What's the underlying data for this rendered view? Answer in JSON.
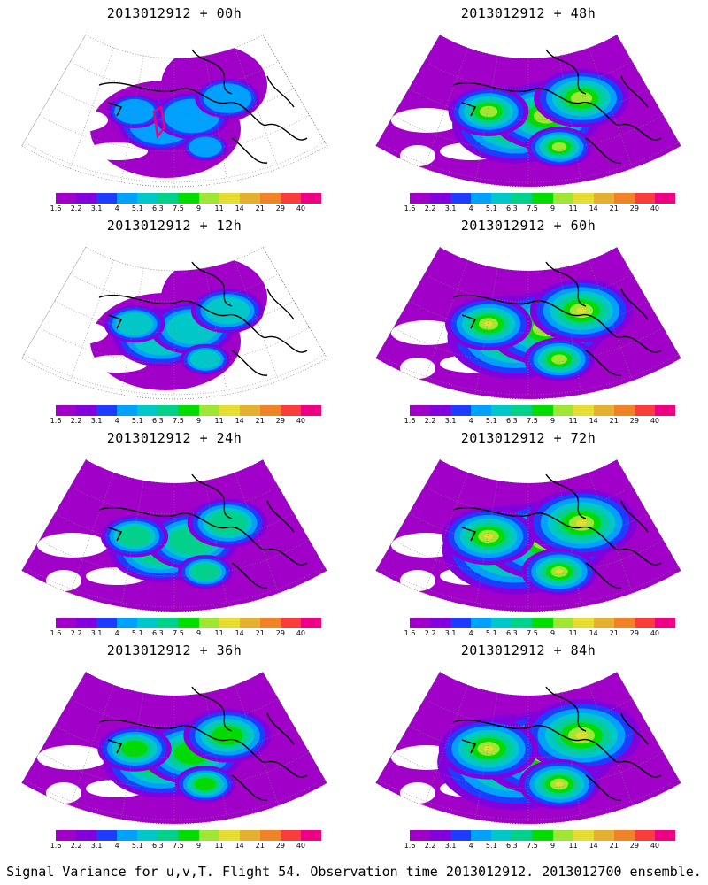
{
  "panels": [
    {
      "title": "2013012912 + 00h",
      "level": 0
    },
    {
      "title": "2013012912 + 48h",
      "level": 4
    },
    {
      "title": "2013012912 + 12h",
      "level": 1
    },
    {
      "title": "2013012912 + 60h",
      "level": 5
    },
    {
      "title": "2013012912 + 24h",
      "level": 2
    },
    {
      "title": "2013012912 + 72h",
      "level": 6
    },
    {
      "title": "2013012912 + 36h",
      "level": 3
    },
    {
      "title": "2013012912 + 84h",
      "level": 7
    }
  ],
  "colorbar": {
    "labels": [
      "1.6",
      "2.2",
      "3.1",
      "4",
      "5.1",
      "6.3",
      "7.5",
      "9",
      "11",
      "14",
      "21",
      "29",
      "40"
    ],
    "colors": [
      "#a000c8",
      "#8200dc",
      "#1e3cff",
      "#00a0ff",
      "#00c8c8",
      "#00d28c",
      "#00dc00",
      "#a0e632",
      "#e6dc32",
      "#e6af2d",
      "#f08228",
      "#fa3c3c",
      "#f00082"
    ]
  },
  "caption": "Signal Variance for u,v,T. Flight 54. Observation time 2013012912. 2013012700 ensemble."
}
